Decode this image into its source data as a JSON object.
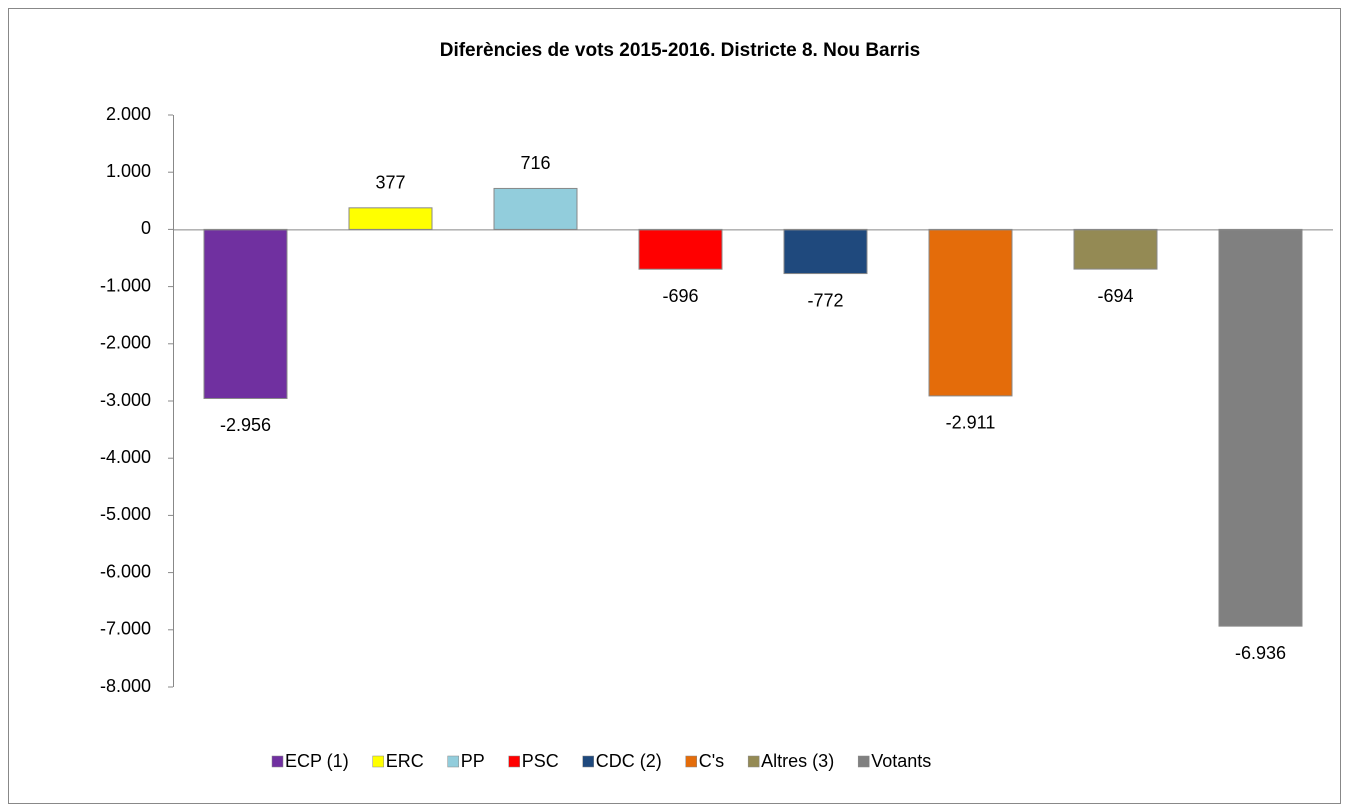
{
  "chart_data": {
    "type": "bar",
    "title": "Diferències de vots 2015-2016. Districte 8. Nou Barris",
    "series": [
      {
        "name": "ECP (1)",
        "color": "#7030a0",
        "values": [
          -2956
        ],
        "value_labels": [
          "-2.956"
        ]
      },
      {
        "name": "ERC",
        "color": "#ffff00",
        "values": [
          377
        ]
      },
      {
        "name": "PP",
        "color": "#92cddc",
        "values": [
          716
        ]
      },
      {
        "name": "PSC",
        "color": "#ff0000",
        "values": [
          -696
        ]
      },
      {
        "name": "CDC (2)",
        "color": "#1f497d",
        "values": [
          -772
        ]
      },
      {
        "name": "C's",
        "color": "#e46c0a",
        "values": [
          -2911
        ],
        "value_labels": [
          "-2.911"
        ]
      },
      {
        "name": "Altres (3)",
        "color": "#948a54",
        "values": [
          -694
        ]
      },
      {
        "name": "Votants",
        "color": "#808080",
        "values": [
          -6936
        ],
        "value_labels": [
          "-6.936"
        ]
      }
    ],
    "ylim": [
      -8000,
      2000
    ],
    "yticks": [
      {
        "value": 2000,
        "label": "2.000"
      },
      {
        "value": 1000,
        "label": "1.000"
      },
      0,
      {
        "value": -1000,
        "label": "-1.000"
      },
      {
        "value": -2000,
        "label": "-2.000"
      },
      {
        "value": -3000,
        "label": "-3.000"
      },
      {
        "value": -4000,
        "label": "-4.000"
      },
      {
        "value": -5000,
        "label": "-5.000"
      },
      {
        "value": -6000,
        "label": "-6.000"
      },
      {
        "value": -7000,
        "label": "-7.000"
      },
      {
        "value": -8000,
        "label": "-8.000"
      }
    ],
    "grid": false,
    "legend": "bottom"
  }
}
